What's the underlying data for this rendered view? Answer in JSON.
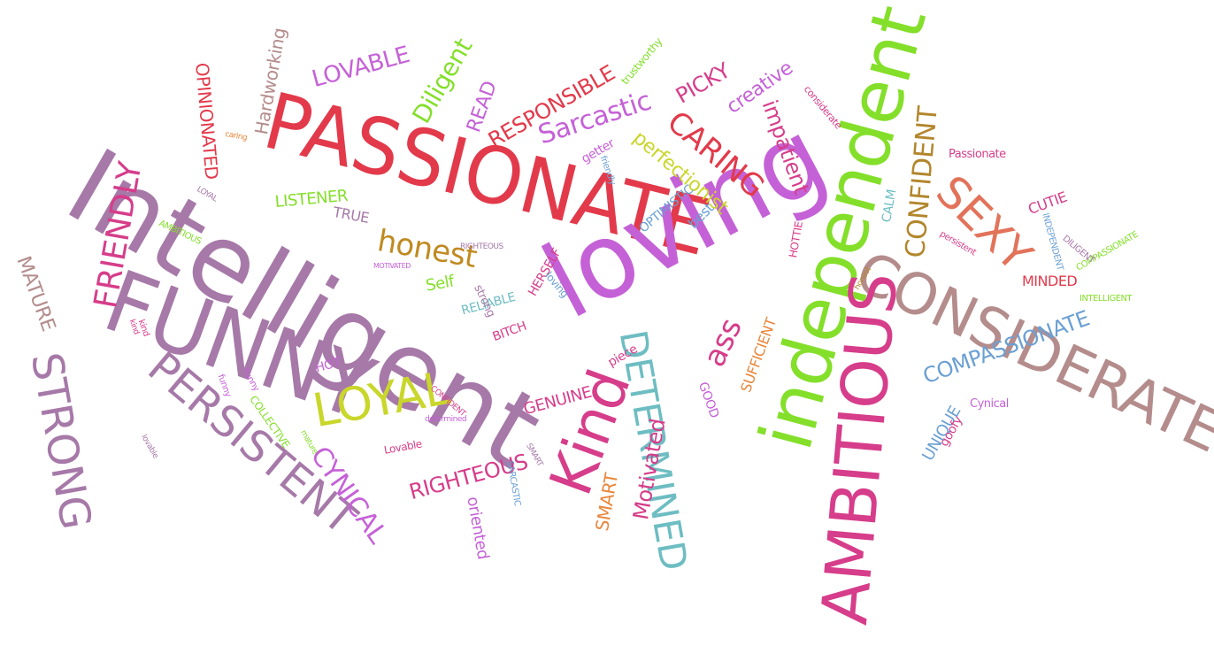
{
  "title": "",
  "palette": {
    "purple": "#a679a8",
    "red": "#e23a4b",
    "magenta": "#d63d8a",
    "violet": "#c561d7",
    "green": "#84df2a",
    "teal": "#6dbdc2",
    "olive": "#b2862c",
    "orange": "#e8863b",
    "mauve": "#b48c8c",
    "blue": "#6ba0d3",
    "salmon": "#e2735a",
    "brown": "#9a7b5c"
  },
  "words": [
    {
      "text": "Intelligent",
      "color": "#a679a8"
    },
    {
      "text": "PASSIONATE",
      "color": "#e23a4b"
    },
    {
      "text": "loving",
      "color": "#c561d7"
    },
    {
      "text": "independent",
      "color": "#84df2a"
    },
    {
      "text": "FUNNY",
      "color": "#a679a8"
    },
    {
      "text": "CONSIDERATE",
      "color": "#b48c8c"
    },
    {
      "text": "AMBITIOUS",
      "color": "#d63d8a"
    },
    {
      "text": "Kind",
      "color": "#d63d8a"
    },
    {
      "text": "STRONG",
      "color": "#a679a8"
    },
    {
      "text": "PERSISTENT",
      "color": "#a679a8"
    },
    {
      "text": "DETERMINED",
      "color": "#6dbdc2"
    },
    {
      "text": "LOYAL",
      "color": "#c9d62a"
    },
    {
      "text": "SEXY",
      "color": "#e2735a"
    },
    {
      "text": "FRIENDLY",
      "color": "#d63d8a"
    },
    {
      "text": "CYNICAL",
      "color": "#c561d7"
    },
    {
      "text": "honest",
      "color": "#c08a20"
    },
    {
      "text": "CARING",
      "color": "#e23a4b"
    },
    {
      "text": "CONFIDENT",
      "color": "#b2862c"
    },
    {
      "text": "COMPASSIONATE",
      "color": "#6ba0d3"
    },
    {
      "text": "Sarcastic",
      "color": "#c561d7"
    },
    {
      "text": "Motivated",
      "color": "#d63d8a"
    },
    {
      "text": "RIGHTEOUS",
      "color": "#d63d8a"
    },
    {
      "text": "MATURE",
      "color": "#b48c8c"
    },
    {
      "text": "Diligent",
      "color": "#84df2a"
    },
    {
      "text": "LOVABLE",
      "color": "#c561d7"
    },
    {
      "text": "RESPONSIBLE",
      "color": "#e23a4b"
    },
    {
      "text": "impatient",
      "color": "#d63d8a"
    },
    {
      "text": "perfectionist",
      "color": "#c9d62a"
    },
    {
      "text": "PICKY",
      "color": "#d63d8a"
    },
    {
      "text": "creative",
      "color": "#c561d7"
    },
    {
      "text": "OPINIONATED",
      "color": "#e23a4b"
    },
    {
      "text": "Hardworking",
      "color": "#b48c8c"
    },
    {
      "text": "READ",
      "color": "#c561d7"
    },
    {
      "text": "ass",
      "color": "#d63d8a"
    },
    {
      "text": "SUFFICIENT",
      "color": "#e8863b"
    },
    {
      "text": "SMART",
      "color": "#e8863b"
    },
    {
      "text": "GENUINE",
      "color": "#d63d8a"
    },
    {
      "text": "oriented",
      "color": "#c561d7"
    },
    {
      "text": "UNIQUE",
      "color": "#6ba0d3"
    },
    {
      "text": "MINDED",
      "color": "#e23a4b"
    },
    {
      "text": "LISTENER",
      "color": "#84df2a"
    },
    {
      "text": "Self",
      "color": "#84df2a"
    },
    {
      "text": "RELIABLE",
      "color": "#6dbdc2"
    },
    {
      "text": "TRUE",
      "color": "#a679a8"
    },
    {
      "text": "HOT",
      "color": "#c561d7"
    },
    {
      "text": "BITCH",
      "color": "#d63d8a"
    },
    {
      "text": "HERSELF",
      "color": "#d63d8a"
    },
    {
      "text": "OPTIMISTIC",
      "color": "#6ba0d3"
    },
    {
      "text": "best",
      "color": "#6ba0d3"
    },
    {
      "text": "CUTIE",
      "color": "#d63d8a"
    },
    {
      "text": "Passionate",
      "color": "#d63d8a"
    },
    {
      "text": "CALM",
      "color": "#6dbdc2"
    },
    {
      "text": "HOTTIE",
      "color": "#d63d8a"
    },
    {
      "text": "goofy",
      "color": "#d63d8a"
    },
    {
      "text": "Cynical",
      "color": "#c561d7"
    },
    {
      "text": "getter",
      "color": "#c561d7"
    },
    {
      "text": "GOOD",
      "color": "#c561d7"
    },
    {
      "text": "piece",
      "color": "#d63d8a"
    },
    {
      "text": "Lovable",
      "color": "#d63d8a"
    },
    {
      "text": "COLLECTIVE",
      "color": "#84df2a"
    },
    {
      "text": "loving",
      "color": "#6ba0d3"
    },
    {
      "text": "strong",
      "color": "#a679a8"
    },
    {
      "text": "trustworthy",
      "color": "#84df2a"
    },
    {
      "text": "COMPASSIONATE",
      "color": "#84df2a"
    },
    {
      "text": "INTELLIGENT",
      "color": "#84df2a"
    },
    {
      "text": "DILIGENT",
      "color": "#a679a8"
    },
    {
      "text": "INDEPENDENT",
      "color": "#6ba0d3"
    },
    {
      "text": "persistent",
      "color": "#d63d8a"
    },
    {
      "text": "friendly",
      "color": "#6ba0d3"
    },
    {
      "text": "AMBITIOUS",
      "color": "#84df2a"
    },
    {
      "text": "funny",
      "color": "#c561d7"
    },
    {
      "text": "LOYAL",
      "color": "#a679a8"
    },
    {
      "text": "RIGHTEOUS",
      "color": "#a679a8"
    },
    {
      "text": "CONFIDENT",
      "color": "#d63d8a"
    },
    {
      "text": "determined",
      "color": "#c561d7"
    },
    {
      "text": "considerate",
      "color": "#d63d8a"
    },
    {
      "text": "MOTIVATED",
      "color": "#c561d7"
    },
    {
      "text": "kind",
      "color": "#d63d8a"
    },
    {
      "text": "mature",
      "color": "#84df2a"
    },
    {
      "text": "SMART",
      "color": "#a679a8"
    },
    {
      "text": "SARCASTIC",
      "color": "#6ba0d3"
    },
    {
      "text": "honest",
      "color": "#b2862c"
    },
    {
      "text": "caring",
      "color": "#e8863b"
    },
    {
      "text": "lovable",
      "color": "#a679a8"
    },
    {
      "text": "Funny",
      "color": "#c561d7"
    },
    {
      "text": "kind",
      "color": "#d63d8a"
    }
  ]
}
